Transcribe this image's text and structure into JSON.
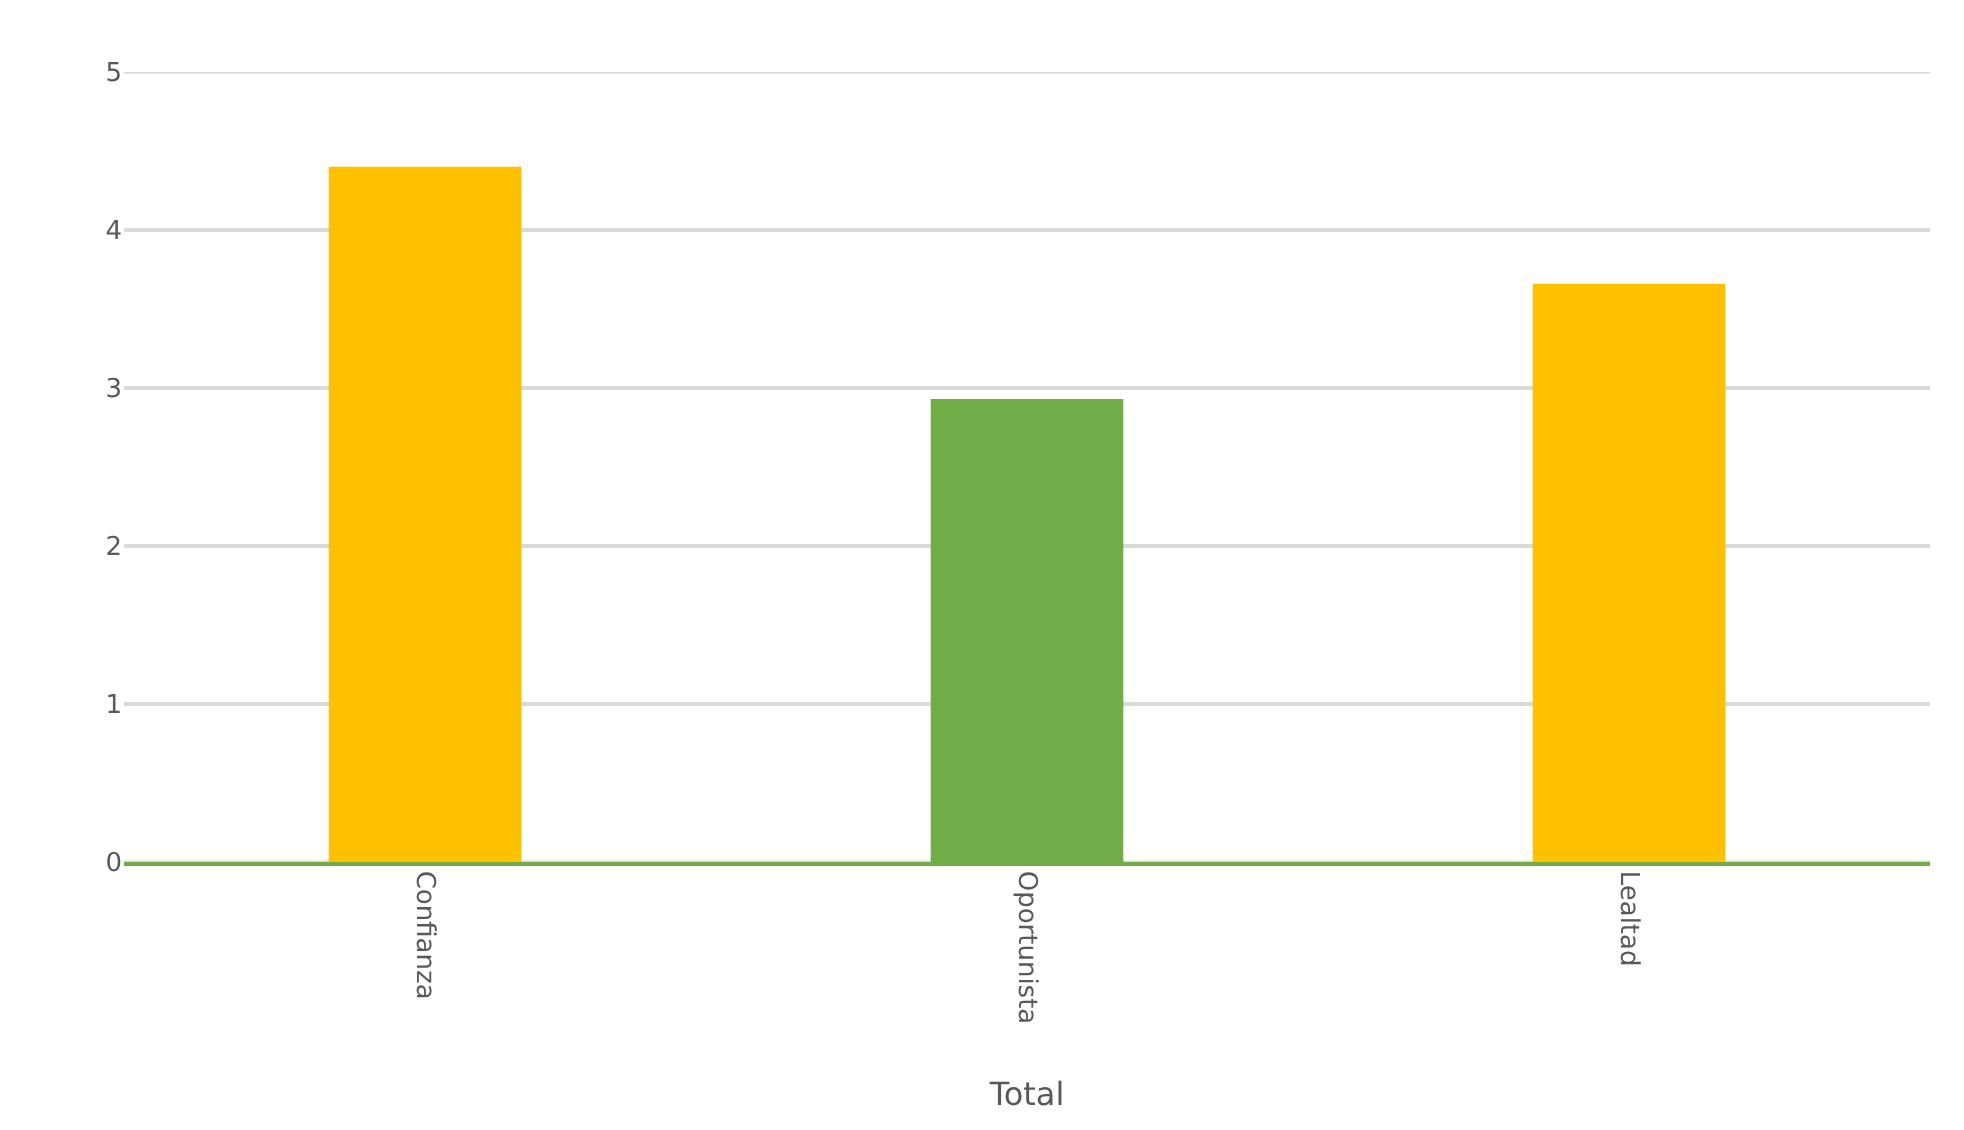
{
  "chart_data": {
    "type": "bar",
    "categories": [
      "Confianza",
      "Oportunista",
      "Lealtad"
    ],
    "values": [
      4.4,
      2.93,
      3.66
    ],
    "colors": [
      "#ffc000",
      "#70ad47",
      "#ffc000"
    ],
    "xlabel": "Total",
    "ylim": [
      0,
      5
    ],
    "yticks": [
      0,
      1,
      2,
      3,
      4,
      5
    ],
    "grid": "y"
  }
}
